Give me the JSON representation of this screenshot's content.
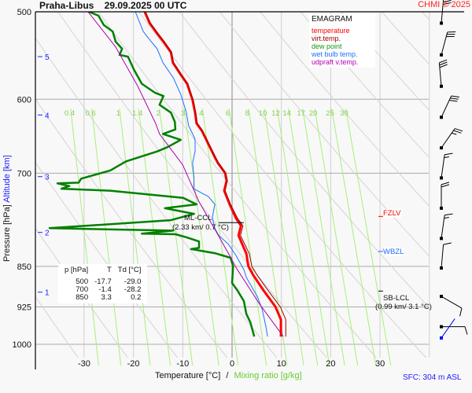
{
  "header": {
    "title": "Praha-Libus    29.09.2025 00 UTC",
    "copyright": "CHMI © 2025"
  },
  "legend": {
    "title": "EMAGRAM",
    "items": [
      {
        "label": "temperature",
        "color": "#ff0000"
      },
      {
        "label": "virt.temp.",
        "color": "#a00000"
      },
      {
        "label": "dew point",
        "color": "#008000"
      },
      {
        "label": "wet bulb temp.",
        "color": "#1e6fff"
      },
      {
        "label": "udpraft v.temp.",
        "color": "#b000b0"
      }
    ]
  },
  "table": {
    "headers": [
      "p [hPa]",
      "T",
      "Td [°C]"
    ],
    "rows": [
      [
        "500",
        "-17.7",
        "-29.0"
      ],
      [
        "700",
        "-1.4",
        "-28.2"
      ],
      [
        "850",
        "3.3",
        "0.2"
      ]
    ]
  },
  "markers": {
    "ml_ccl": {
      "label": "ML-CCL",
      "detail": "(2.33 km/ 0.7 °C)",
      "pressure": 776
    },
    "fzlv": {
      "label": "FZLV",
      "pressure": 766,
      "color": "#ff0000"
    },
    "wbzl": {
      "label": "WBZL",
      "pressure": 824,
      "color": "#1e6fff"
    },
    "sb_lcl": {
      "label": "SB-LCL",
      "detail": "(0.99 km/ 3.1 °C)",
      "pressure": 895
    }
  },
  "footer": {
    "xlabel_temp": "Temperature [°C]",
    "xlabel_sep": "/",
    "xlabel_mix": "Mixing ratio [g/kg]",
    "sfc": "SFC: 304 m ASL"
  },
  "chart_data": {
    "type": "line",
    "title": "Praha-Libus    29.09.2025 00 UTC",
    "xlabel": "Temperature [°C] / Mixing ratio [g/kg]",
    "ylabel": "Pressure [hPa]",
    "y2label": "Altitude [km]",
    "xlim": [
      -40,
      40
    ],
    "ylim": [
      500,
      1050
    ],
    "yscale": "log",
    "xticks": [
      "-30",
      "-20",
      "-10",
      "0",
      "10",
      "20",
      "30"
    ],
    "yticks": [
      "500",
      "600",
      "700",
      "850",
      "925",
      "1000"
    ],
    "altitude_ticks": [
      {
        "label": "1",
        "pressure": 897
      },
      {
        "label": "2",
        "pressure": 792
      },
      {
        "label": "3",
        "pressure": 705
      },
      {
        "label": "4",
        "pressure": 620
      },
      {
        "label": "5",
        "pressure": 549
      }
    ],
    "mixing_ratio_labels": [
      "0.4",
      "0.6",
      "1",
      "1.4",
      "2",
      "3",
      "4",
      "6",
      "8",
      "10",
      "12",
      "14",
      "17",
      "20",
      "25",
      "30"
    ],
    "dry_adiabats_theta_K": [
      230,
      240,
      250,
      260,
      270,
      280,
      290,
      300,
      310,
      320,
      330,
      340,
      350,
      360,
      370,
      380,
      390,
      400,
      410,
      420,
      430,
      440,
      450
    ],
    "series": [
      {
        "name": "temperature",
        "color": "#ff0000",
        "p": [
          500,
          512,
          523,
          532,
          544,
          556,
          570,
          581,
          601,
          617,
          631,
          641,
          663,
          677,
          685,
          700,
          711,
          726,
          747,
          769,
          781,
          797,
          828,
          850,
          866,
          894,
          925,
          950,
          984
        ],
        "t": [
          -17.7,
          -16.7,
          -15.2,
          -13.9,
          -12.4,
          -12.0,
          -10.4,
          -9.1,
          -8.0,
          -7.5,
          -7.2,
          -6.1,
          -4.5,
          -3.5,
          -2.9,
          -1.4,
          -1.1,
          -1.6,
          -0.5,
          0.8,
          1.8,
          1.3,
          2.9,
          3.3,
          4.3,
          6.4,
          8.8,
          9.9,
          9.9
        ]
      },
      {
        "name": "virt.temp.",
        "color": "#a00000",
        "p": [
          500,
          512,
          523,
          532,
          544,
          556,
          570,
          581,
          601,
          617,
          631,
          641,
          663,
          677,
          685,
          700,
          711,
          726,
          747,
          769,
          781,
          797,
          828,
          850,
          866,
          894,
          925,
          950,
          984
        ],
        "t": [
          -17.6,
          -16.6,
          -15.1,
          -13.8,
          -12.3,
          -11.9,
          -10.3,
          -9.0,
          -7.9,
          -7.4,
          -7.1,
          -6.0,
          -4.4,
          -3.4,
          -2.8,
          -1.3,
          -1.0,
          -1.4,
          -0.3,
          1.1,
          2.2,
          1.7,
          3.5,
          4.0,
          5.1,
          7.3,
          9.8,
          10.9,
          10.9
        ]
      },
      {
        "name": "dew point",
        "color": "#008000",
        "p": [
          500,
          504,
          514,
          521,
          532,
          540,
          547,
          549,
          564,
          581,
          592,
          596,
          607,
          617,
          629,
          639,
          645,
          653,
          663,
          669,
          683,
          696,
          708,
          714,
          715,
          719,
          723,
          726,
          737,
          747,
          753,
          762,
          772,
          785,
          789,
          794,
          795,
          800,
          807,
          818,
          820,
          827,
          835,
          850,
          880,
          894,
          914,
          939,
          955,
          984
        ],
        "t": [
          -29.0,
          -27.1,
          -26.0,
          -24.2,
          -23.6,
          -22.3,
          -22.8,
          -21.1,
          -19.9,
          -18.3,
          -15.6,
          -13.9,
          -14.7,
          -12.4,
          -11.6,
          -11.5,
          -14.0,
          -10.4,
          -13.1,
          -15.2,
          -21.5,
          -24.7,
          -30.6,
          -31.1,
          -35.4,
          -33.0,
          -34.6,
          -24.7,
          -9.9,
          -7.2,
          -13.6,
          -7.7,
          -12.4,
          -37.0,
          -12.0,
          -18.3,
          -11.5,
          -9.3,
          -6.7,
          -6.7,
          -8.3,
          -3.5,
          -0.3,
          0.2,
          0.0,
          1.1,
          2.4,
          2.9,
          3.7,
          4.5
        ]
      },
      {
        "name": "wet bulb temp.",
        "color": "#1e6fff",
        "p": [
          500,
          521,
          532,
          540,
          556,
          574,
          594,
          616,
          634,
          652,
          669,
          685,
          708,
          723,
          735,
          747,
          768,
          785,
          797,
          811,
          831,
          856,
          870,
          905,
          929,
          966,
          984
        ],
        "t": [
          -19.6,
          -18.0,
          -16.4,
          -15.2,
          -14.0,
          -11.9,
          -10.4,
          -9.3,
          -8.8,
          -7.5,
          -7.5,
          -8.0,
          -7.7,
          -7.8,
          -4.8,
          -3.5,
          -4.0,
          -3.5,
          -2.7,
          -0.8,
          0.8,
          2.4,
          2.9,
          5.1,
          6.1,
          6.9,
          7.2
        ]
      },
      {
        "name": "udpraft v.temp.",
        "color": "#b000b0",
        "p": [
          500,
          538,
          584,
          631,
          645,
          688,
          743,
          787,
          834,
          852,
          920,
          984
        ],
        "t": [
          -29.2,
          -23.6,
          -19.1,
          -15.5,
          -14.7,
          -10.0,
          -6.7,
          -3.5,
          -0.3,
          0.8,
          5.6,
          10.4
        ]
      }
    ],
    "wind_barbs": [
      {
        "pressure": 512,
        "direction_deg": 5,
        "speed_kt": 30
      },
      {
        "pressure": 547,
        "direction_deg": 15,
        "speed_kt": 30
      },
      {
        "pressure": 584,
        "direction_deg": 355,
        "speed_kt": 30
      },
      {
        "pressure": 623,
        "direction_deg": 25,
        "speed_kt": 30
      },
      {
        "pressure": 664,
        "direction_deg": 35,
        "speed_kt": 25
      },
      {
        "pressure": 707,
        "direction_deg": 8,
        "speed_kt": 15
      },
      {
        "pressure": 753,
        "direction_deg": 0,
        "speed_kt": 20
      },
      {
        "pressure": 802,
        "direction_deg": 8,
        "speed_kt": 15
      },
      {
        "pressure": 853,
        "direction_deg": 5,
        "speed_kt": 10
      },
      {
        "pressure": 905,
        "direction_deg": 120,
        "speed_kt": 10
      },
      {
        "pressure": 964,
        "direction_deg": 90,
        "speed_kt": 10
      },
      {
        "pressure": 987,
        "direction_deg": 35,
        "speed_kt": 0,
        "color": "#0000ff"
      }
    ]
  }
}
